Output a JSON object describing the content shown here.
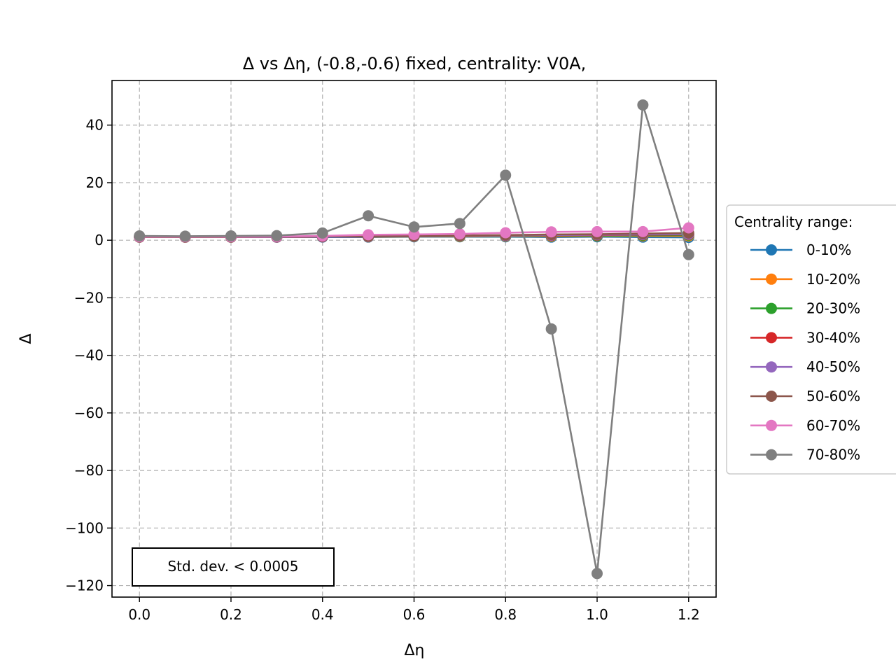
{
  "chart_data": {
    "type": "line",
    "title": "Δ vs Δη, (-0.8,-0.6) fixed, centrality: V0A,",
    "xlabel": "Δη",
    "ylabel": "Δ",
    "xlim": [
      -0.06,
      1.26
    ],
    "ylim": [
      -124,
      55.5
    ],
    "xticks": [
      0.0,
      0.2,
      0.4,
      0.6,
      0.8,
      1.0,
      1.2
    ],
    "xtick_labels": [
      "0.0",
      "0.2",
      "0.4",
      "0.6",
      "0.8",
      "1.0",
      "1.2"
    ],
    "yticks": [
      40,
      20,
      0,
      -20,
      -40,
      -60,
      -80,
      -100,
      -120
    ],
    "ytick_labels": [
      "40",
      "20",
      "0",
      "−20",
      "−40",
      "−60",
      "−80",
      "−100",
      "−120"
    ],
    "grid": true,
    "legend": {
      "title": "Centrality range:",
      "placement": "outside-right"
    },
    "annotation": "Std. dev. < 0.0005",
    "x": [
      0.0,
      0.1,
      0.2,
      0.3,
      0.4,
      0.5,
      0.6,
      0.7,
      0.8,
      0.9,
      1.0,
      1.1,
      1.2
    ],
    "series": [
      {
        "name": "0-10%",
        "color": "#1f77b4",
        "values": [
          1.1,
          1.1,
          1.1,
          1.1,
          1.1,
          1.1,
          1.2,
          1.2,
          1.2,
          1.1,
          1.2,
          1.1,
          1.0
        ]
      },
      {
        "name": "10-20%",
        "color": "#ff7f0e",
        "values": [
          1.1,
          1.1,
          1.1,
          1.1,
          1.2,
          1.2,
          1.3,
          1.3,
          1.4,
          1.4,
          1.5,
          1.5,
          1.5
        ]
      },
      {
        "name": "20-30%",
        "color": "#2ca02c",
        "values": [
          1.1,
          1.1,
          1.1,
          1.1,
          1.2,
          1.3,
          1.3,
          1.4,
          1.5,
          1.6,
          1.6,
          1.7,
          1.8
        ]
      },
      {
        "name": "30-40%",
        "color": "#d62728",
        "values": [
          1.1,
          1.1,
          1.1,
          1.1,
          1.2,
          1.3,
          1.4,
          1.5,
          1.6,
          1.7,
          1.8,
          1.9,
          2.0
        ]
      },
      {
        "name": "40-50%",
        "color": "#9467bd",
        "values": [
          1.1,
          1.1,
          1.1,
          1.1,
          1.2,
          1.3,
          1.4,
          1.5,
          1.6,
          1.8,
          1.9,
          2.0,
          2.1
        ]
      },
      {
        "name": "50-60%",
        "color": "#8c564b",
        "values": [
          1.1,
          1.1,
          1.1,
          1.2,
          1.3,
          1.4,
          1.5,
          1.6,
          1.8,
          2.0,
          2.1,
          2.3,
          2.5
        ]
      },
      {
        "name": "60-70%",
        "color": "#e377c2",
        "values": [
          1.2,
          1.2,
          1.2,
          1.3,
          1.5,
          1.9,
          2.0,
          2.2,
          2.6,
          2.9,
          3.0,
          3.0,
          4.3
        ]
      },
      {
        "name": "70-80%",
        "color": "#7f7f7f",
        "values": [
          1.5,
          1.4,
          1.5,
          1.6,
          2.5,
          8.5,
          4.6,
          5.8,
          22.6,
          -30.8,
          -115.8,
          47.0,
          -5.0
        ]
      }
    ]
  }
}
